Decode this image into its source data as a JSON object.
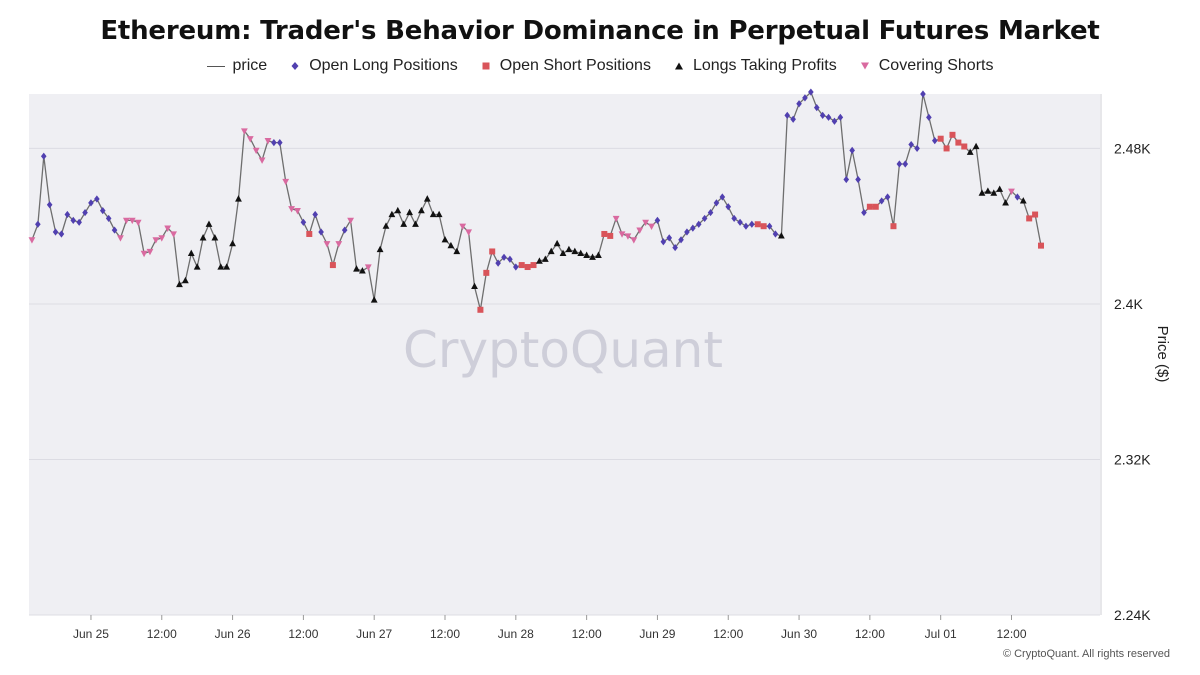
{
  "chart_data": {
    "type": "line",
    "title": "Ethereum: Trader's Behavior Dominance in Perpetual Futures Market",
    "ylabel": "Price ($)",
    "watermark": "CryptoQuant",
    "ylim": [
      2240,
      2508
    ],
    "y_ticks": [
      {
        "value": 2480,
        "label": "2.48K"
      },
      {
        "value": 2400,
        "label": "2.4K"
      },
      {
        "value": 2320,
        "label": "2.32K"
      },
      {
        "value": 2240,
        "label": "2.24K"
      }
    ],
    "x_range_hours": [
      -10.5,
      171
    ],
    "x_ticks": [
      {
        "hour": 0,
        "label": "Jun 25"
      },
      {
        "hour": 12,
        "label": "12:00"
      },
      {
        "hour": 24,
        "label": "Jun 26"
      },
      {
        "hour": 36,
        "label": "12:00"
      },
      {
        "hour": 48,
        "label": "Jun 27"
      },
      {
        "hour": 60,
        "label": "12:00"
      },
      {
        "hour": 72,
        "label": "Jun 28"
      },
      {
        "hour": 84,
        "label": "12:00"
      },
      {
        "hour": 96,
        "label": "Jun 29"
      },
      {
        "hour": 108,
        "label": "12:00"
      },
      {
        "hour": 120,
        "label": "Jun 30"
      },
      {
        "hour": 132,
        "label": "12:00"
      },
      {
        "hour": 144,
        "label": "Jul 01"
      },
      {
        "hour": 156,
        "label": "12:00"
      }
    ],
    "series": [
      {
        "name": "price",
        "color": "#6e6e6e",
        "marker": "line"
      },
      {
        "name": "Open Long Positions",
        "color": "#5140b0",
        "marker": "diamond"
      },
      {
        "name": "Open Short Positions",
        "color": "#d9545a",
        "marker": "square"
      },
      {
        "name": "Longs Taking Profits",
        "color": "#111111",
        "marker": "triangle-up"
      },
      {
        "name": "Covering Shorts",
        "color": "#d96aa0",
        "marker": "triangle-down"
      }
    ],
    "points": [
      {
        "t": -10,
        "y": 2433,
        "s": 4
      },
      {
        "t": -9,
        "y": 2441,
        "s": 1
      },
      {
        "t": -8,
        "y": 2476,
        "s": 1
      },
      {
        "t": -7,
        "y": 2451,
        "s": 1
      },
      {
        "t": -6,
        "y": 2437,
        "s": 1
      },
      {
        "t": -5,
        "y": 2436,
        "s": 1
      },
      {
        "t": -4,
        "y": 2446,
        "s": 1
      },
      {
        "t": -3,
        "y": 2443,
        "s": 1
      },
      {
        "t": -2,
        "y": 2442,
        "s": 1
      },
      {
        "t": -1,
        "y": 2447,
        "s": 1
      },
      {
        "t": 0,
        "y": 2452,
        "s": 1
      },
      {
        "t": 1,
        "y": 2454,
        "s": 1
      },
      {
        "t": 2,
        "y": 2448,
        "s": 1
      },
      {
        "t": 3,
        "y": 2444,
        "s": 1
      },
      {
        "t": 4,
        "y": 2438,
        "s": 1
      },
      {
        "t": 5,
        "y": 2434,
        "s": 4
      },
      {
        "t": 6,
        "y": 2443,
        "s": 4
      },
      {
        "t": 7,
        "y": 2443,
        "s": 4
      },
      {
        "t": 8,
        "y": 2442,
        "s": 4
      },
      {
        "t": 9,
        "y": 2426,
        "s": 4
      },
      {
        "t": 10,
        "y": 2427,
        "s": 4
      },
      {
        "t": 11,
        "y": 2433,
        "s": 4
      },
      {
        "t": 12,
        "y": 2434,
        "s": 4
      },
      {
        "t": 13,
        "y": 2439,
        "s": 4
      },
      {
        "t": 14,
        "y": 2436,
        "s": 4
      },
      {
        "t": 15,
        "y": 2410,
        "s": 3
      },
      {
        "t": 16,
        "y": 2412,
        "s": 3
      },
      {
        "t": 17,
        "y": 2426,
        "s": 3
      },
      {
        "t": 18,
        "y": 2419,
        "s": 3
      },
      {
        "t": 19,
        "y": 2434,
        "s": 3
      },
      {
        "t": 20,
        "y": 2441,
        "s": 3
      },
      {
        "t": 21,
        "y": 2434,
        "s": 3
      },
      {
        "t": 22,
        "y": 2419,
        "s": 3
      },
      {
        "t": 23,
        "y": 2419,
        "s": 3
      },
      {
        "t": 24,
        "y": 2431,
        "s": 3
      },
      {
        "t": 25,
        "y": 2454,
        "s": 3
      },
      {
        "t": 26,
        "y": 2489,
        "s": 4
      },
      {
        "t": 27,
        "y": 2485,
        "s": 4
      },
      {
        "t": 28,
        "y": 2479,
        "s": 4
      },
      {
        "t": 29,
        "y": 2474,
        "s": 4
      },
      {
        "t": 30,
        "y": 2484,
        "s": 4
      },
      {
        "t": 31,
        "y": 2483,
        "s": 1
      },
      {
        "t": 32,
        "y": 2483,
        "s": 1
      },
      {
        "t": 33,
        "y": 2463,
        "s": 4
      },
      {
        "t": 34,
        "y": 2449,
        "s": 4
      },
      {
        "t": 35,
        "y": 2448,
        "s": 4
      },
      {
        "t": 36,
        "y": 2442,
        "s": 1
      },
      {
        "t": 37,
        "y": 2436,
        "s": 2
      },
      {
        "t": 38,
        "y": 2446,
        "s": 1
      },
      {
        "t": 39,
        "y": 2437,
        "s": 1
      },
      {
        "t": 40,
        "y": 2431,
        "s": 4
      },
      {
        "t": 41,
        "y": 2420,
        "s": 2
      },
      {
        "t": 42,
        "y": 2431,
        "s": 4
      },
      {
        "t": 43,
        "y": 2438,
        "s": 1
      },
      {
        "t": 44,
        "y": 2443,
        "s": 4
      },
      {
        "t": 45,
        "y": 2418,
        "s": 3
      },
      {
        "t": 46,
        "y": 2417,
        "s": 3
      },
      {
        "t": 47,
        "y": 2419,
        "s": 4
      },
      {
        "t": 48,
        "y": 2402,
        "s": 3
      },
      {
        "t": 49,
        "y": 2428,
        "s": 3
      },
      {
        "t": 50,
        "y": 2440,
        "s": 3
      },
      {
        "t": 51,
        "y": 2446,
        "s": 3
      },
      {
        "t": 52,
        "y": 2448,
        "s": 3
      },
      {
        "t": 53,
        "y": 2441,
        "s": 3
      },
      {
        "t": 54,
        "y": 2447,
        "s": 3
      },
      {
        "t": 55,
        "y": 2441,
        "s": 3
      },
      {
        "t": 56,
        "y": 2448,
        "s": 3
      },
      {
        "t": 57,
        "y": 2454,
        "s": 3
      },
      {
        "t": 58,
        "y": 2446,
        "s": 3
      },
      {
        "t": 59,
        "y": 2446,
        "s": 3
      },
      {
        "t": 60,
        "y": 2433,
        "s": 3
      },
      {
        "t": 61,
        "y": 2430,
        "s": 3
      },
      {
        "t": 62,
        "y": 2427,
        "s": 3
      },
      {
        "t": 63,
        "y": 2440,
        "s": 4
      },
      {
        "t": 64,
        "y": 2437,
        "s": 4
      },
      {
        "t": 65,
        "y": 2409,
        "s": 3
      },
      {
        "t": 66,
        "y": 2397,
        "s": 2
      },
      {
        "t": 67,
        "y": 2416,
        "s": 2
      },
      {
        "t": 68,
        "y": 2427,
        "s": 2
      },
      {
        "t": 69,
        "y": 2421,
        "s": 1
      },
      {
        "t": 70,
        "y": 2424,
        "s": 1
      },
      {
        "t": 71,
        "y": 2423,
        "s": 1
      },
      {
        "t": 72,
        "y": 2419,
        "s": 1
      },
      {
        "t": 73,
        "y": 2420,
        "s": 2
      },
      {
        "t": 74,
        "y": 2419,
        "s": 2
      },
      {
        "t": 75,
        "y": 2420,
        "s": 2
      },
      {
        "t": 76,
        "y": 2422,
        "s": 3
      },
      {
        "t": 77,
        "y": 2423,
        "s": 3
      },
      {
        "t": 78,
        "y": 2427,
        "s": 3
      },
      {
        "t": 79,
        "y": 2431,
        "s": 3
      },
      {
        "t": 80,
        "y": 2426,
        "s": 3
      },
      {
        "t": 81,
        "y": 2428,
        "s": 3
      },
      {
        "t": 82,
        "y": 2427,
        "s": 3
      },
      {
        "t": 83,
        "y": 2426,
        "s": 3
      },
      {
        "t": 84,
        "y": 2425,
        "s": 3
      },
      {
        "t": 85,
        "y": 2424,
        "s": 3
      },
      {
        "t": 86,
        "y": 2425,
        "s": 3
      },
      {
        "t": 87,
        "y": 2436,
        "s": 2
      },
      {
        "t": 88,
        "y": 2435,
        "s": 2
      },
      {
        "t": 89,
        "y": 2444,
        "s": 4
      },
      {
        "t": 90,
        "y": 2436,
        "s": 4
      },
      {
        "t": 91,
        "y": 2435,
        "s": 4
      },
      {
        "t": 92,
        "y": 2433,
        "s": 4
      },
      {
        "t": 93,
        "y": 2438,
        "s": 4
      },
      {
        "t": 94,
        "y": 2442,
        "s": 4
      },
      {
        "t": 95,
        "y": 2440,
        "s": 4
      },
      {
        "t": 96,
        "y": 2443,
        "s": 1
      },
      {
        "t": 97,
        "y": 2432,
        "s": 1
      },
      {
        "t": 98,
        "y": 2434,
        "s": 1
      },
      {
        "t": 99,
        "y": 2429,
        "s": 1
      },
      {
        "t": 100,
        "y": 2433,
        "s": 1
      },
      {
        "t": 101,
        "y": 2437,
        "s": 1
      },
      {
        "t": 102,
        "y": 2439,
        "s": 1
      },
      {
        "t": 103,
        "y": 2441,
        "s": 1
      },
      {
        "t": 104,
        "y": 2444,
        "s": 1
      },
      {
        "t": 105,
        "y": 2447,
        "s": 1
      },
      {
        "t": 106,
        "y": 2452,
        "s": 1
      },
      {
        "t": 107,
        "y": 2455,
        "s": 1
      },
      {
        "t": 108,
        "y": 2450,
        "s": 1
      },
      {
        "t": 109,
        "y": 2444,
        "s": 1
      },
      {
        "t": 110,
        "y": 2442,
        "s": 1
      },
      {
        "t": 111,
        "y": 2440,
        "s": 1
      },
      {
        "t": 112,
        "y": 2441,
        "s": 1
      },
      {
        "t": 113,
        "y": 2441,
        "s": 2
      },
      {
        "t": 114,
        "y": 2440,
        "s": 2
      },
      {
        "t": 115,
        "y": 2440,
        "s": 1
      },
      {
        "t": 116,
        "y": 2436,
        "s": 1
      },
      {
        "t": 117,
        "y": 2435,
        "s": 3
      },
      {
        "t": 118,
        "y": 2497,
        "s": 1
      },
      {
        "t": 119,
        "y": 2495,
        "s": 1
      },
      {
        "t": 120,
        "y": 2503,
        "s": 1
      },
      {
        "t": 121,
        "y": 2506,
        "s": 1
      },
      {
        "t": 122,
        "y": 2509,
        "s": 1
      },
      {
        "t": 123,
        "y": 2501,
        "s": 1
      },
      {
        "t": 124,
        "y": 2497,
        "s": 1
      },
      {
        "t": 125,
        "y": 2496,
        "s": 1
      },
      {
        "t": 126,
        "y": 2494,
        "s": 1
      },
      {
        "t": 127,
        "y": 2496,
        "s": 1
      },
      {
        "t": 128,
        "y": 2464,
        "s": 1
      },
      {
        "t": 129,
        "y": 2479,
        "s": 1
      },
      {
        "t": 130,
        "y": 2464,
        "s": 1
      },
      {
        "t": 131,
        "y": 2447,
        "s": 1
      },
      {
        "t": 132,
        "y": 2450,
        "s": 2
      },
      {
        "t": 133,
        "y": 2450,
        "s": 2
      },
      {
        "t": 134,
        "y": 2453,
        "s": 1
      },
      {
        "t": 135,
        "y": 2455,
        "s": 1
      },
      {
        "t": 136,
        "y": 2440,
        "s": 2
      },
      {
        "t": 137,
        "y": 2472,
        "s": 1
      },
      {
        "t": 138,
        "y": 2472,
        "s": 1
      },
      {
        "t": 139,
        "y": 2482,
        "s": 1
      },
      {
        "t": 140,
        "y": 2480,
        "s": 1
      },
      {
        "t": 141,
        "y": 2508,
        "s": 1
      },
      {
        "t": 142,
        "y": 2496,
        "s": 1
      },
      {
        "t": 143,
        "y": 2484,
        "s": 1
      },
      {
        "t": 144,
        "y": 2485,
        "s": 2
      },
      {
        "t": 145,
        "y": 2480,
        "s": 2
      },
      {
        "t": 146,
        "y": 2487,
        "s": 2
      },
      {
        "t": 147,
        "y": 2483,
        "s": 2
      },
      {
        "t": 148,
        "y": 2481,
        "s": 2
      },
      {
        "t": 149,
        "y": 2478,
        "s": 3
      },
      {
        "t": 150,
        "y": 2481,
        "s": 3
      },
      {
        "t": 151,
        "y": 2457,
        "s": 3
      },
      {
        "t": 152,
        "y": 2458,
        "s": 3
      },
      {
        "t": 153,
        "y": 2457,
        "s": 3
      },
      {
        "t": 154,
        "y": 2459,
        "s": 3
      },
      {
        "t": 155,
        "y": 2452,
        "s": 3
      },
      {
        "t": 156,
        "y": 2458,
        "s": 4
      },
      {
        "t": 157,
        "y": 2455,
        "s": 1
      },
      {
        "t": 158,
        "y": 2453,
        "s": 3
      },
      {
        "t": 159,
        "y": 2444,
        "s": 2
      },
      {
        "t": 160,
        "y": 2446,
        "s": 2
      },
      {
        "t": 161,
        "y": 2430,
        "s": 2
      }
    ]
  },
  "footer": {
    "copyright": "© CryptoQuant. All rights reserved"
  }
}
